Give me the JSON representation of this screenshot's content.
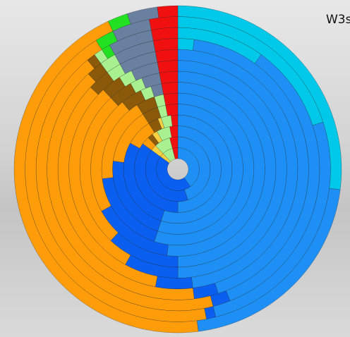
{
  "chart_data": {
    "type": "radial-stacked",
    "title": "W3s",
    "series": [
      {
        "name": null,
        "color": "#00c8e8",
        "values": [
          0,
          0,
          0,
          0,
          0,
          0,
          0,
          0,
          0,
          0,
          2,
          10,
          20,
          27
        ]
      },
      {
        "name": null,
        "color": "#1e90f5",
        "values": [
          40,
          45,
          50,
          55,
          55,
          55,
          52,
          50,
          50,
          48,
          43,
          34,
          26,
          21
        ]
      },
      {
        "name": null,
        "color": "#0a5ff0",
        "values": [
          45,
          40,
          35,
          28,
          22,
          18,
          15,
          12,
          8,
          5,
          3,
          2,
          1,
          0
        ]
      },
      {
        "name": null,
        "color": "#ff9c0a",
        "values": [
          0,
          0,
          3,
          8,
          14,
          18,
          22,
          26,
          30,
          34,
          40,
          43,
          44,
          45
        ]
      },
      {
        "name": null,
        "color": "#8a5a0a",
        "values": [
          0,
          0,
          2,
          3,
          4,
          4,
          4,
          4,
          3,
          3,
          2,
          1,
          0,
          0
        ]
      },
      {
        "name": null,
        "color": "#f5d040",
        "values": [
          3,
          3,
          2,
          1,
          0,
          0,
          0,
          0,
          0,
          0,
          0,
          0,
          0,
          0
        ]
      },
      {
        "name": null,
        "color": "#a8f090",
        "values": [
          8,
          8,
          5,
          3,
          2,
          2,
          2,
          2,
          2,
          2,
          2,
          1,
          0,
          0
        ]
      },
      {
        "name": null,
        "color": "#22e022",
        "values": [
          0,
          0,
          0,
          0,
          0,
          0,
          0,
          0,
          0,
          0,
          0,
          1,
          2,
          2
        ]
      },
      {
        "name": null,
        "color": "#6a80a0",
        "values": [
          0,
          0,
          0,
          0,
          0,
          0,
          2,
          3,
          4,
          5,
          5,
          5,
          4,
          3
        ]
      },
      {
        "name": null,
        "color": "#f01010",
        "values": [
          4,
          4,
          3,
          2,
          3,
          3,
          3,
          3,
          3,
          3,
          3,
          3,
          3,
          2
        ]
      }
    ]
  }
}
